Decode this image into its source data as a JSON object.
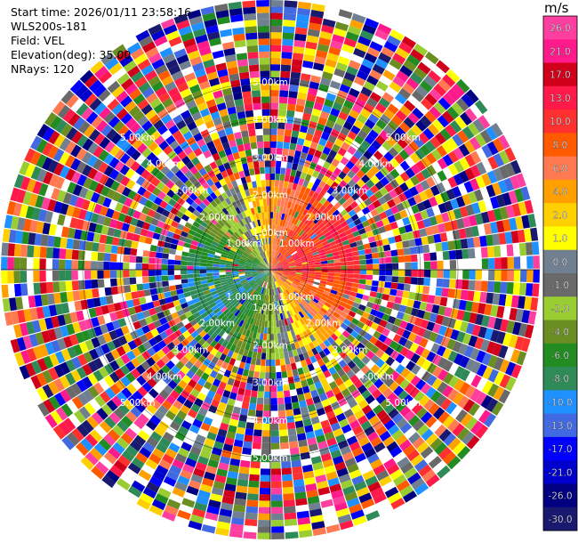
{
  "header": {
    "start_time": "Start time: 2026/01/11 23:58:16",
    "instrument": "WLS200s-181",
    "field": "Field: VEL",
    "elevation": "Elevation(deg): 35.00",
    "nrays": "NRays: 120"
  },
  "chart_data": {
    "type": "heatmap",
    "projection": "polar PPI (plan position indicator)",
    "field": "VEL",
    "units": "m/s",
    "n_rays": 120,
    "range_ring_labels": [
      "1.00km",
      "2.00km",
      "3.00km",
      "4.00km",
      "5.00km"
    ],
    "range_ring_values_km": [
      1,
      2,
      3,
      4,
      5
    ],
    "max_range_km": 7.2,
    "grid": true,
    "colorbar": {
      "unit_label": "m/s",
      "ticks": [
        "26.0",
        "21.0",
        "17.0",
        "13.0",
        "10.0",
        "8.0",
        "6.0",
        "4.0",
        "2.0",
        "1.0",
        "0.0",
        "-1.0",
        "-2.0",
        "-4.0",
        "-6.0",
        "-8.0",
        "-10.0",
        "-13.0",
        "-17.0",
        "-21.0",
        "-26.0",
        "-30.0"
      ],
      "colors": [
        "#ff3fa0",
        "#ff1a8c",
        "#d0001a",
        "#ff1a4a",
        "#ff3030",
        "#ff5a00",
        "#ff7a50",
        "#ffa000",
        "#ffd000",
        "#ffff00",
        "#708090",
        "#696969",
        "#9acd32",
        "#6b8e23",
        "#228b22",
        "#2e8b57",
        "#1e90ff",
        "#4169e1",
        "#0000ff",
        "#0000cd",
        "#000080",
        "#191970"
      ]
    },
    "description_of_pattern": "Inner region (< ~2.4 km): coherent radial wind field, positive (red/pink) toward east-northeast, negative (blue) toward west-southwest, yellow/green zero line roughly north-south. Outer region: noise."
  }
}
